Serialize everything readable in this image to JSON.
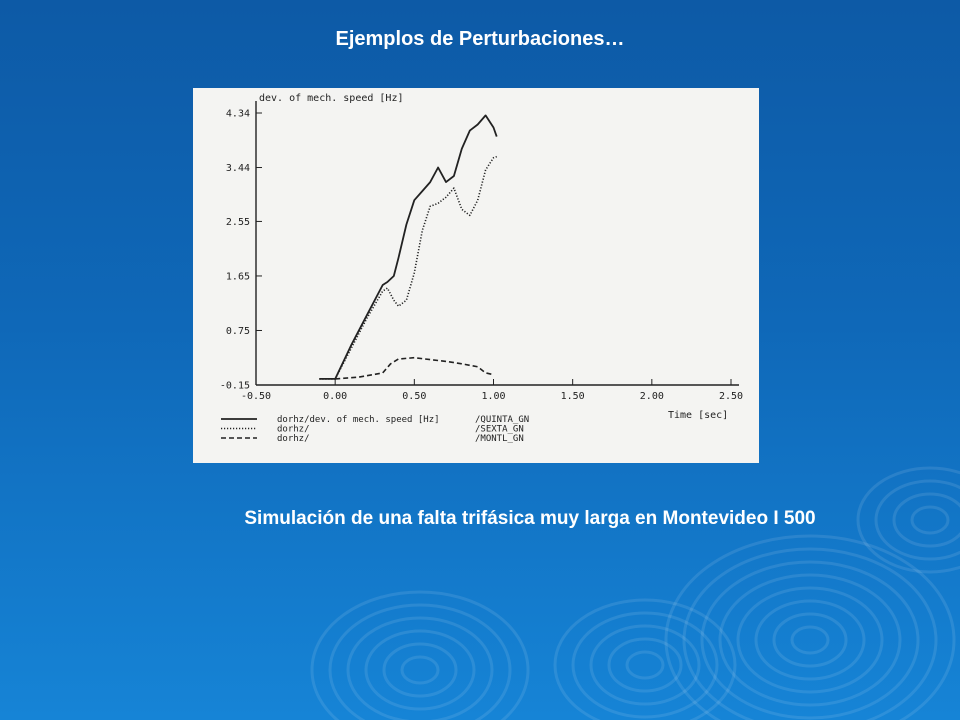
{
  "slide": {
    "title": "Ejemplos de Perturbaciones…",
    "caption": "Simulación de una falta trifásica muy larga en Montevideo I 500"
  },
  "colors": {
    "background_top": "#0d5aa6",
    "background_bottom": "#1684d6",
    "text": "#ffffff",
    "chart_panel": "#f4f4f2",
    "ink": "#222222"
  },
  "chart_data": {
    "type": "line",
    "ylabel": "dev. of mech. speed [Hz]",
    "xlabel": "Time [sec]",
    "xlim": [
      -0.5,
      2.5
    ],
    "ylim": [
      -0.15,
      4.34
    ],
    "xticks": [
      "-0.50",
      "0.00",
      "0.50",
      "1.00",
      "1.50",
      "2.00",
      "2.50"
    ],
    "yticks": [
      "-0.15",
      "0.75",
      "1.65",
      "2.55",
      "3.44",
      "4.34"
    ],
    "grid": false,
    "legend_position": "bottom",
    "series": [
      {
        "legend_left": "dorhz/dev. of mech. speed [Hz]",
        "legend_right": "/QUINTA_GN",
        "style": "solid",
        "x": [
          -0.1,
          0.0,
          0.1,
          0.2,
          0.3,
          0.33,
          0.37,
          0.4,
          0.45,
          0.5,
          0.55,
          0.6,
          0.65,
          0.7,
          0.75,
          0.8,
          0.85,
          0.9,
          0.95,
          1.0,
          1.02
        ],
        "y": [
          -0.05,
          -0.05,
          0.5,
          1.0,
          1.5,
          1.55,
          1.65,
          1.95,
          2.5,
          2.9,
          3.05,
          3.2,
          3.44,
          3.2,
          3.3,
          3.75,
          4.05,
          4.15,
          4.3,
          4.1,
          3.95
        ]
      },
      {
        "legend_left": "dorhz/",
        "legend_right": "/SEXTA_GN",
        "style": "dotted",
        "x": [
          -0.1,
          0.0,
          0.1,
          0.2,
          0.3,
          0.33,
          0.37,
          0.4,
          0.45,
          0.5,
          0.55,
          0.6,
          0.65,
          0.7,
          0.75,
          0.8,
          0.85,
          0.9,
          0.95,
          1.0,
          1.02
        ],
        "y": [
          -0.05,
          -0.05,
          0.45,
          0.95,
          1.4,
          1.45,
          1.25,
          1.15,
          1.25,
          1.7,
          2.4,
          2.8,
          2.85,
          2.95,
          3.1,
          2.75,
          2.65,
          2.9,
          3.4,
          3.6,
          3.62
        ]
      },
      {
        "legend_left": "dorhz/",
        "legend_right": "/MONTL_GN",
        "style": "dashed",
        "x": [
          0.0,
          0.15,
          0.3,
          0.35,
          0.4,
          0.5,
          0.6,
          0.7,
          0.8,
          0.9,
          0.95,
          1.0
        ],
        "y": [
          -0.05,
          -0.02,
          0.05,
          0.2,
          0.28,
          0.3,
          0.27,
          0.24,
          0.2,
          0.15,
          0.05,
          0.02
        ]
      }
    ]
  }
}
